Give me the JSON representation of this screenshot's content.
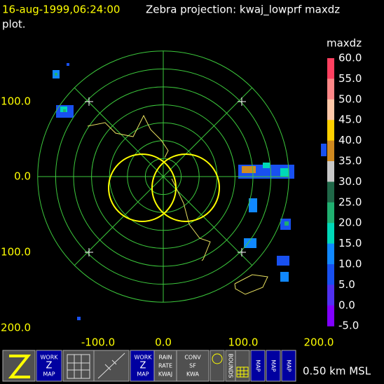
{
  "header": {
    "timestamp": "16-aug-1999,06:24:00",
    "title": "Zebra projection: kwaj_lowprf maxdz",
    "title_cont": "plot."
  },
  "plot": {
    "x_labels": [
      "-100.0",
      "0.0",
      "100.0",
      "200.0"
    ],
    "y_labels": [
      "100.0",
      "0.0",
      "100.0",
      "200.0"
    ]
  },
  "colorbar": {
    "title": "maxdz",
    "labels": [
      "60.0",
      "55.0",
      "50.0",
      "45.0",
      "40.0",
      "35.0",
      "30.0",
      "25.0",
      "20.0",
      "15.0",
      "10.0",
      "5.0",
      "0.0",
      "-5.0"
    ],
    "colors": [
      "#ff4060",
      "#ff8888",
      "#ffc8a8",
      "#ffd000",
      "#d08a20",
      "#c8c8c8",
      "#206848",
      "#20b070",
      "#00d8b8",
      "#1088ff",
      "#1850f0",
      "#5030f0",
      "#8000ff"
    ]
  },
  "toolbar": {
    "buttons": [
      [
        "WORK",
        "Z",
        "MAP"
      ],
      [
        "WORK",
        "Z",
        "MAP"
      ],
      [
        "RAIN",
        "RATE",
        "KWAJ"
      ],
      [
        "CONV",
        "SF",
        "KWA"
      ],
      [
        "BOUNDS"
      ],
      [
        "MAP"
      ],
      [
        "MAP"
      ],
      [
        "MAP"
      ]
    ]
  },
  "footer": "0.50 km MSL"
}
